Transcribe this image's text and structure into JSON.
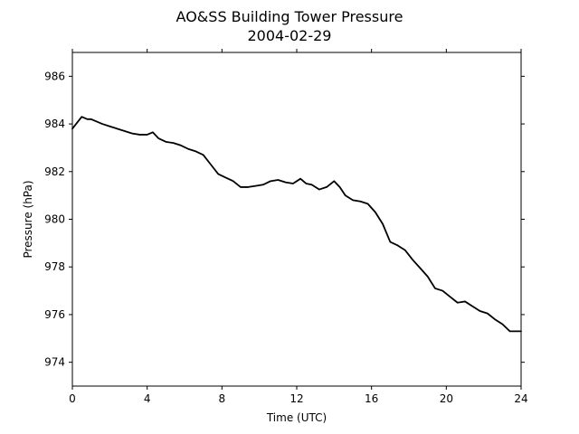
{
  "chart_data": {
    "type": "line",
    "title": "AO&SS Building Tower Pressure",
    "subtitle": "2004-02-29",
    "xlabel": "Time (UTC)",
    "ylabel": "Pressure (hPa)",
    "xlim": [
      0,
      24
    ],
    "ylim": [
      973,
      987
    ],
    "xticks": [
      0,
      4,
      8,
      12,
      16,
      20,
      24
    ],
    "yticks": [
      974,
      976,
      978,
      980,
      982,
      984,
      986
    ],
    "grid": false,
    "series": [
      {
        "color": "#000000",
        "x": [
          0,
          0.2,
          0.5,
          0.8,
          1.0,
          1.3,
          1.6,
          2.0,
          2.4,
          2.8,
          3.2,
          3.6,
          4.0,
          4.3,
          4.6,
          5.0,
          5.4,
          5.8,
          6.2,
          6.6,
          7.0,
          7.4,
          7.8,
          8.2,
          8.6,
          9.0,
          9.4,
          9.8,
          10.2,
          10.6,
          11.0,
          11.4,
          11.8,
          12.2,
          12.5,
          12.8,
          13.2,
          13.6,
          14.0,
          14.3,
          14.6,
          15.0,
          15.4,
          15.8,
          16.2,
          16.6,
          17.0,
          17.4,
          17.8,
          18.2,
          18.6,
          19.0,
          19.4,
          19.8,
          20.2,
          20.6,
          21.0,
          21.4,
          21.8,
          22.2,
          22.6,
          23.0,
          23.4,
          23.7,
          24.0
        ],
        "y": [
          983.8,
          984.0,
          984.3,
          984.2,
          984.2,
          984.1,
          984.0,
          983.9,
          983.8,
          983.7,
          983.6,
          983.55,
          983.55,
          983.65,
          983.4,
          983.25,
          983.2,
          983.1,
          982.95,
          982.85,
          982.7,
          982.3,
          981.9,
          981.75,
          981.6,
          981.35,
          981.35,
          981.4,
          981.45,
          981.6,
          981.65,
          981.55,
          981.5,
          981.7,
          981.5,
          981.45,
          981.25,
          981.35,
          981.6,
          981.35,
          981.0,
          980.8,
          980.75,
          980.65,
          980.3,
          979.8,
          979.05,
          978.9,
          978.7,
          978.3,
          977.95,
          977.6,
          977.1,
          977.0,
          976.75,
          976.5,
          976.55,
          976.35,
          976.15,
          976.05,
          975.8,
          975.6,
          975.3,
          975.3,
          975.3
        ]
      }
    ]
  }
}
